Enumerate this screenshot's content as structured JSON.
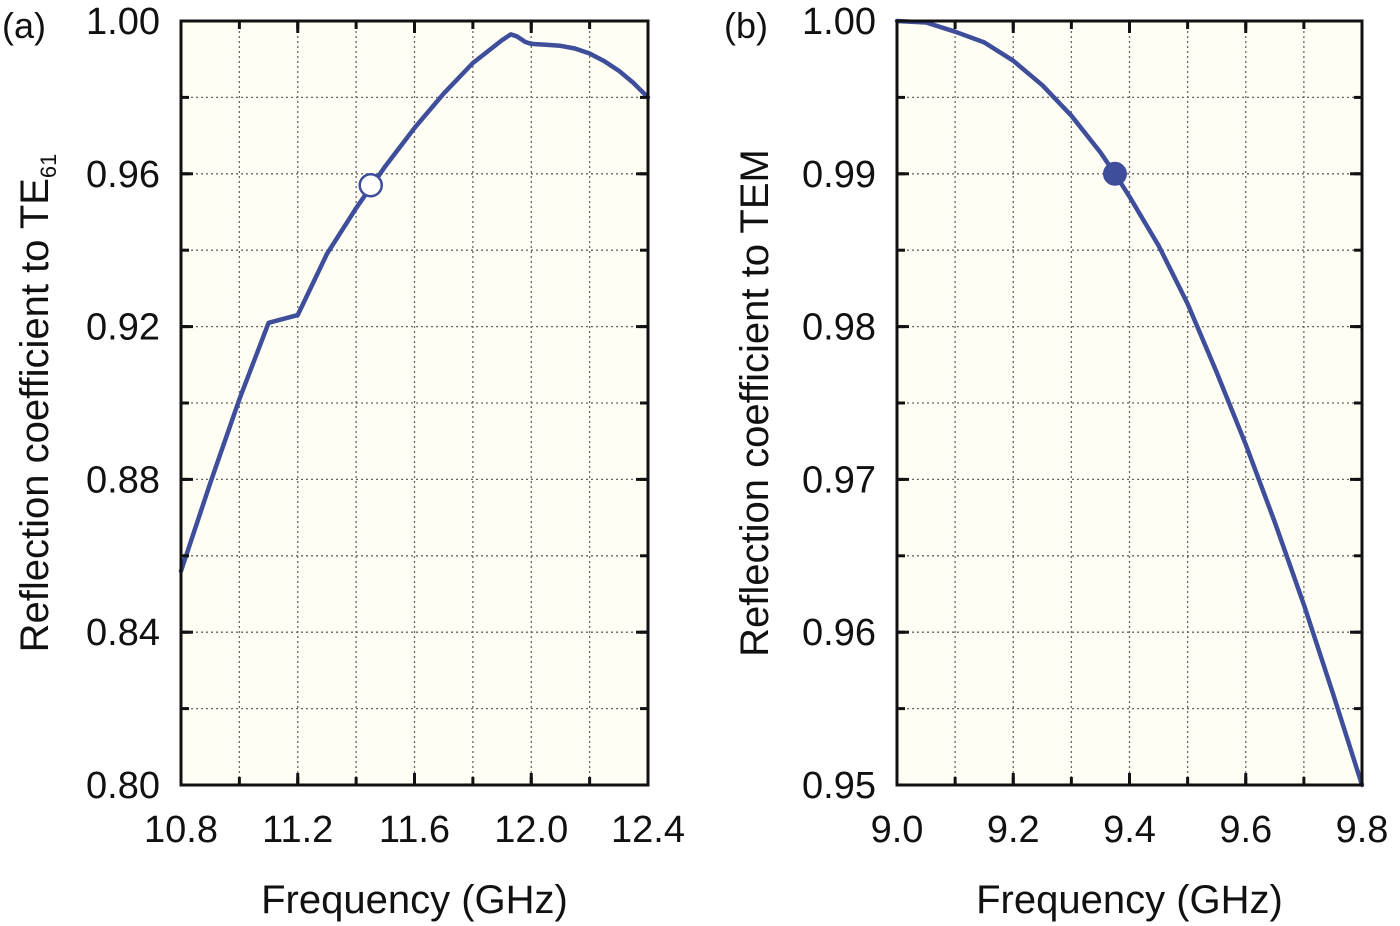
{
  "colors": {
    "plot_background": "#fefef4",
    "curve": "#3f4e9a",
    "axis": "#111111",
    "grid": "#666666"
  },
  "chart_data": [
    {
      "type": "line",
      "panel_label": "(a)",
      "xlabel": "Frequency (GHz)",
      "ylabel_main": "Reflection coefficient to TE",
      "ylabel_subscript": "61",
      "xlim": [
        10.8,
        12.4
      ],
      "ylim": [
        0.8,
        1.0
      ],
      "x_ticks": [
        10.8,
        11.2,
        11.6,
        12.0,
        12.4
      ],
      "x_tick_labels": [
        "10.8",
        "11.2",
        "11.6",
        "12.0",
        "12.4"
      ],
      "y_ticks": [
        0.8,
        0.84,
        0.88,
        0.92,
        0.96,
        1.0
      ],
      "y_tick_labels": [
        "0.80",
        "0.84",
        "0.88",
        "0.92",
        "0.96",
        "1.00"
      ],
      "x_grid": [
        11.0,
        11.2,
        11.4,
        11.6,
        11.8,
        12.0,
        12.2
      ],
      "y_grid": [
        0.82,
        0.84,
        0.86,
        0.88,
        0.9,
        0.92,
        0.94,
        0.96,
        0.98
      ],
      "grid": true,
      "series": [
        {
          "x": [
            10.8,
            10.9,
            11.0,
            11.1,
            11.2,
            11.3,
            11.4,
            11.5,
            11.6,
            11.7,
            11.8,
            11.9,
            11.93,
            11.95,
            11.98,
            12.0,
            12.05,
            12.1,
            12.15,
            12.2,
            12.25,
            12.3,
            12.35,
            12.4
          ],
          "y": [
            0.856,
            0.879,
            0.901,
            0.921,
            0.923,
            0.939,
            0.951,
            0.962,
            0.972,
            0.981,
            0.989,
            0.995,
            0.9965,
            0.996,
            0.9945,
            0.994,
            0.9938,
            0.9935,
            0.9928,
            0.9915,
            0.9895,
            0.987,
            0.9838,
            0.98
          ]
        }
      ],
      "marker": {
        "x": 11.45,
        "y": 0.957,
        "style": "open-circle"
      }
    },
    {
      "type": "line",
      "panel_label": "(b)",
      "xlabel": "Frequency (GHz)",
      "ylabel_main": "Reflection coefficient to TEM",
      "ylabel_subscript": "",
      "xlim": [
        9.0,
        9.8
      ],
      "ylim": [
        0.95,
        1.0
      ],
      "x_ticks": [
        9.0,
        9.2,
        9.4,
        9.6,
        9.8
      ],
      "x_tick_labels": [
        "9.0",
        "9.2",
        "9.4",
        "9.6",
        "9.8"
      ],
      "y_ticks": [
        0.95,
        0.96,
        0.97,
        0.98,
        0.99,
        1.0
      ],
      "y_tick_labels": [
        "0.95",
        "0.96",
        "0.97",
        "0.98",
        "0.99",
        "1.00"
      ],
      "x_grid": [
        9.1,
        9.2,
        9.3,
        9.4,
        9.5,
        9.6,
        9.7
      ],
      "y_grid": [
        0.955,
        0.96,
        0.965,
        0.97,
        0.975,
        0.98,
        0.985,
        0.99,
        0.995
      ],
      "grid": true,
      "series": [
        {
          "x": [
            9.0,
            9.05,
            9.1,
            9.15,
            9.2,
            9.25,
            9.3,
            9.35,
            9.375,
            9.4,
            9.45,
            9.5,
            9.55,
            9.6,
            9.65,
            9.7,
            9.75,
            9.8
          ],
          "y": [
            1.0,
            0.9999,
            0.9993,
            0.9986,
            0.9974,
            0.9958,
            0.9938,
            0.9914,
            0.99,
            0.9885,
            0.9853,
            0.9815,
            0.977,
            0.9723,
            0.9672,
            0.9618,
            0.956,
            0.95
          ]
        }
      ],
      "marker": {
        "x": 9.375,
        "y": 0.99,
        "style": "filled-circle"
      }
    }
  ]
}
